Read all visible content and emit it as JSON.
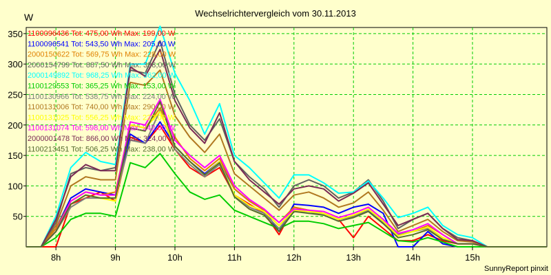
{
  "chart_data": {
    "type": "line",
    "title": "Wechselrichtervergleich vom 30.11.2013",
    "ylabel": "W",
    "xlim": [
      7.5,
      16.25
    ],
    "ylim": [
      0,
      360
    ],
    "yticks": [
      50,
      100,
      150,
      200,
      250,
      300,
      350
    ],
    "xticks": [
      {
        "value": 8,
        "label": "8h"
      },
      {
        "value": 9,
        "label": "9h"
      },
      {
        "value": 10,
        "label": "10h"
      },
      {
        "value": 11,
        "label": "11h"
      },
      {
        "value": 12,
        "label": "12h"
      },
      {
        "value": 13,
        "label": "13h"
      },
      {
        "value": 14,
        "label": "14h"
      },
      {
        "value": 15,
        "label": "15h"
      }
    ],
    "grid": true,
    "legend_position": "top-left",
    "footer": "SunnyReport pinxit",
    "x": [
      7.5,
      7.75,
      8.0,
      8.25,
      8.5,
      8.75,
      9.0,
      9.25,
      9.5,
      9.75,
      10.0,
      10.25,
      10.5,
      10.75,
      11.0,
      11.25,
      11.5,
      11.75,
      12.0,
      12.25,
      12.5,
      12.75,
      13.0,
      13.25,
      13.5,
      13.75,
      14.0,
      14.25,
      14.5,
      14.75,
      15.0,
      15.25,
      15.5,
      15.75,
      16.0,
      16.25
    ],
    "series": [
      {
        "name": "1100096436 Tot: 475,00 Wh Max: 199,00 W",
        "color": "#ff0000",
        "values": [
          0,
          0,
          0,
          70,
          80,
          90,
          75,
          180,
          170,
          199,
          160,
          130,
          115,
          130,
          85,
          70,
          55,
          20,
          65,
          60,
          55,
          45,
          15,
          50,
          30,
          10,
          10,
          20,
          10,
          5,
          5,
          0,
          0,
          0,
          0,
          0
        ]
      },
      {
        "name": "1100096541 Tot: 543,50 Wh Max: 205,00 W",
        "color": "#0000ff",
        "values": [
          0,
          0,
          30,
          80,
          95,
          90,
          85,
          185,
          170,
          205,
          165,
          140,
          120,
          140,
          95,
          75,
          60,
          25,
          70,
          68,
          65,
          55,
          65,
          70,
          55,
          0,
          0,
          25,
          5,
          0,
          0,
          0,
          0,
          0,
          0,
          0
        ]
      },
      {
        "name": "2000150622 Tot: 569,75 Wh Max: 228,00 W",
        "color": "#e08000",
        "values": [
          0,
          0,
          30,
          75,
          90,
          85,
          90,
          200,
          195,
          228,
          180,
          145,
          125,
          145,
          95,
          75,
          60,
          40,
          65,
          60,
          55,
          45,
          50,
          60,
          40,
          20,
          25,
          35,
          20,
          5,
          5,
          0,
          0,
          0,
          0,
          0
        ]
      },
      {
        "name": "2000154799 Tot: 887,50 Wh Max: 338,00 W",
        "color": "#606060",
        "values": [
          0,
          0,
          40,
          120,
          130,
          125,
          130,
          290,
          285,
          338,
          250,
          200,
          175,
          210,
          140,
          115,
          95,
          65,
          100,
          110,
          100,
          80,
          90,
          110,
          75,
          30,
          45,
          55,
          30,
          15,
          10,
          0,
          0,
          0,
          0,
          0
        ]
      },
      {
        "name": "2000149892 Tot: 968,25 Wh Max: 362,00 W",
        "color": "#00ffff",
        "values": [
          0,
          0,
          50,
          130,
          155,
          140,
          135,
          300,
          300,
          362,
          285,
          240,
          185,
          235,
          150,
          130,
          105,
          80,
          118,
          118,
          105,
          88,
          90,
          108,
          80,
          48,
          55,
          65,
          35,
          20,
          15,
          0,
          0,
          0,
          0,
          0
        ]
      },
      {
        "name": "1100129553 Tot: 365,25 Wh Max: 153,00 W",
        "color": "#00cc00",
        "values": [
          0,
          0,
          15,
          45,
          55,
          55,
          50,
          138,
          130,
          153,
          120,
          90,
          78,
          85,
          60,
          50,
          40,
          30,
          42,
          42,
          38,
          30,
          35,
          40,
          25,
          10,
          8,
          15,
          8,
          0,
          0,
          0,
          0,
          0,
          0,
          0
        ]
      },
      {
        "name": "1100130966 Tot: 538,75 Wh Max: 224,00 W",
        "color": "#808080",
        "values": [
          0,
          0,
          25,
          65,
          80,
          80,
          80,
          175,
          170,
          224,
          160,
          135,
          115,
          135,
          85,
          65,
          55,
          30,
          60,
          55,
          55,
          45,
          50,
          60,
          40,
          20,
          25,
          30,
          15,
          5,
          5,
          0,
          0,
          0,
          0,
          0
        ]
      },
      {
        "name": "1100131006 Tot: 740,00 Wh Max: 290,00 W",
        "color": "#b07820",
        "values": [
          0,
          0,
          35,
          100,
          115,
          110,
          110,
          270,
          265,
          290,
          215,
          180,
          155,
          185,
          120,
          100,
          80,
          60,
          85,
          90,
          80,
          65,
          72,
          90,
          60,
          25,
          35,
          45,
          25,
          10,
          8,
          0,
          0,
          0,
          0,
          0
        ]
      },
      {
        "name": "1100131025 Tot: 556,25 Wh Max: 222,00 W",
        "color": "#ffff00",
        "values": [
          0,
          0,
          25,
          70,
          85,
          80,
          75,
          200,
          195,
          222,
          165,
          140,
          118,
          140,
          85,
          68,
          58,
          35,
          60,
          58,
          55,
          45,
          52,
          62,
          42,
          18,
          25,
          32,
          15,
          5,
          5,
          0,
          0,
          0,
          0,
          0
        ]
      },
      {
        "name": "1100131074 Tot: 598,00 Wh Max: 242,00 W",
        "color": "#ff00ff",
        "values": [
          0,
          0,
          25,
          75,
          90,
          85,
          85,
          205,
          200,
          242,
          175,
          150,
          130,
          150,
          100,
          78,
          62,
          40,
          62,
          60,
          58,
          48,
          55,
          65,
          45,
          22,
          28,
          38,
          20,
          5,
          5,
          0,
          0,
          0,
          0,
          0
        ]
      },
      {
        "name": "2000001478 Tot: 866,00 Wh Max: 324,00 W",
        "color": "#7a2a55",
        "values": [
          0,
          0,
          45,
          115,
          135,
          125,
          125,
          295,
          280,
          324,
          240,
          195,
          170,
          220,
          140,
          110,
          90,
          70,
          95,
          100,
          95,
          75,
          88,
          105,
          70,
          35,
          45,
          55,
          30,
          12,
          10,
          0,
          0,
          0,
          0,
          0
        ]
      },
      {
        "name": "1100213451 Tot: 506,25 Wh Max: 238,00 W",
        "color": "#556b2f",
        "values": [
          0,
          0,
          25,
          70,
          85,
          80,
          80,
          195,
          190,
          238,
          165,
          140,
          118,
          138,
          82,
          62,
          52,
          25,
          58,
          55,
          52,
          42,
          48,
          58,
          38,
          15,
          20,
          28,
          12,
          5,
          5,
          0,
          0,
          0,
          0,
          0
        ]
      }
    ]
  }
}
